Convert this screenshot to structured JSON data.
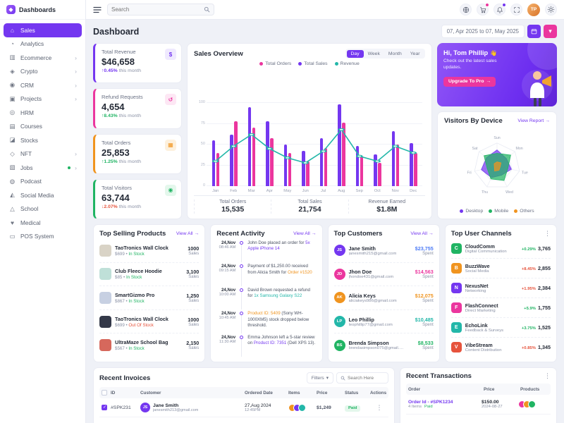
{
  "brand": {
    "name": "Dashboards"
  },
  "topbar": {
    "search_placeholder": "Search",
    "user_initials": "TP"
  },
  "sidebar": {
    "items": [
      {
        "label": "Sales",
        "glyph": "⌂",
        "state": "active"
      },
      {
        "label": "Analytics",
        "glyph": "◔"
      },
      {
        "label": "Ecommerce",
        "glyph": "▥",
        "chevron": "›"
      },
      {
        "label": "Crypto",
        "glyph": "◈",
        "chevron": "›"
      },
      {
        "label": "CRM",
        "glyph": "◉",
        "chevron": "›"
      },
      {
        "label": "Projects",
        "glyph": "▣",
        "chevron": "›"
      },
      {
        "label": "HRM",
        "glyph": "◎"
      },
      {
        "label": "Courses",
        "glyph": "▤"
      },
      {
        "label": "Stocks",
        "glyph": "◪"
      },
      {
        "label": "NFT",
        "glyph": "◇",
        "chevron": "›"
      },
      {
        "label": "Jobs",
        "glyph": "▧",
        "dot": true,
        "chevron": "›"
      },
      {
        "label": "Podcast",
        "glyph": "◍"
      },
      {
        "label": "Social Media",
        "glyph": "◭"
      },
      {
        "label": "School",
        "glyph": "△"
      },
      {
        "label": "Medical",
        "glyph": "♥"
      },
      {
        "label": "POS System",
        "glyph": "▭"
      }
    ]
  },
  "page": {
    "title": "Dashboard",
    "date_range": "07, Apr 2025 to 07, May 2025",
    "filter_glyph": "▾"
  },
  "stats": [
    {
      "label": "Total Revenue",
      "value": "$46,658",
      "arrow": "↑",
      "delta": "0.45%",
      "suffix": "this month",
      "accent": "#7437f0",
      "icon": "$",
      "icon_tone": "ic-purple",
      "tone": "t-purple"
    },
    {
      "label": "Refund Requests",
      "value": "4,654",
      "arrow": "↑",
      "delta": "8.43%",
      "suffix": "this month",
      "accent": "#eb369e",
      "icon": "↺",
      "icon_tone": "ic-pink",
      "tone": "t-green"
    },
    {
      "label": "Total Orders",
      "value": "25,853",
      "arrow": "↑",
      "delta": "1.25%",
      "suffix": "this month",
      "accent": "#f0941f",
      "icon": "▦",
      "icon_tone": "ic-orange",
      "tone": "t-green"
    },
    {
      "label": "Total Visitors",
      "value": "63,744",
      "arrow": "↓",
      "delta": "2.07%",
      "suffix": "this month",
      "accent": "#20b463",
      "icon": "◉",
      "icon_tone": "ic-green",
      "tone": "t-red"
    }
  ],
  "sales_overview": {
    "title": "Sales Overview",
    "tabs": [
      {
        "label": "Day",
        "state": "active"
      },
      {
        "label": "Week"
      },
      {
        "label": "Month"
      },
      {
        "label": "Year"
      }
    ],
    "legend": [
      {
        "label": "Total Orders",
        "color": "#eb369e"
      },
      {
        "label": "Total Sales",
        "color": "#7437f0"
      },
      {
        "label": "Revenue",
        "color": "#23b7a9"
      }
    ],
    "footer": [
      {
        "label": "Total Orders",
        "value": "15,535"
      },
      {
        "label": "Total Sales",
        "value": "21,754"
      },
      {
        "label": "Revenue Earned",
        "value": "$1.8M"
      }
    ]
  },
  "chart_data": [
    {
      "id": "sales-overview",
      "type": "bar",
      "title": "Sales Overview",
      "categories": [
        "Jan",
        "Feb",
        "Mar",
        "Apr",
        "May",
        "Jun",
        "Jul",
        "Aug",
        "Sep",
        "Oct",
        "Nov",
        "Dec"
      ],
      "series": [
        {
          "name": "Total Sales",
          "type": "bar",
          "color": "#7437f0",
          "values": [
            55,
            62,
            95,
            78,
            50,
            42,
            58,
            98,
            48,
            38,
            66,
            52
          ]
        },
        {
          "name": "Total Orders",
          "type": "bar",
          "color": "#eb369e",
          "values": [
            40,
            78,
            70,
            58,
            40,
            30,
            46,
            76,
            36,
            28,
            50,
            40
          ]
        },
        {
          "name": "Revenue",
          "type": "line",
          "color": "#23b7a9",
          "values": [
            30,
            48,
            62,
            45,
            34,
            28,
            42,
            68,
            36,
            30,
            48,
            40
          ]
        }
      ],
      "ylim": [
        0,
        100
      ],
      "yticks": [
        0,
        25,
        50,
        75,
        100
      ],
      "legend_position": "top"
    },
    {
      "id": "visitors-by-device",
      "type": "radar",
      "title": "Visitors By Device",
      "categories": [
        "Sun",
        "Mon",
        "Tue",
        "Wed",
        "Thu",
        "Fri",
        "Sat"
      ],
      "max": 100,
      "series": [
        {
          "name": "Desktop",
          "color": "#7437f0",
          "values": [
            70,
            52,
            64,
            44,
            56,
            70,
            58
          ]
        },
        {
          "name": "Mobile",
          "color": "#20b463",
          "values": [
            55,
            76,
            48,
            70,
            62,
            44,
            72
          ]
        },
        {
          "name": "Others",
          "color": "#f0941f",
          "values": [
            18,
            22,
            14,
            20,
            24,
            12,
            16
          ]
        }
      ]
    }
  ],
  "promo": {
    "title": "Hi, Tom Phillip",
    "emoji": "👋",
    "subtitle": "Check out the latest sales updates.",
    "cta": "Upgrade To Pro",
    "cta_arrow": "→"
  },
  "visitors": {
    "title": "Visitors By Device",
    "link": "View Report",
    "link_arrow": "→",
    "legend": [
      {
        "label": "Desktop",
        "color": "#7437f0"
      },
      {
        "label": "Mobile",
        "color": "#20b463"
      },
      {
        "label": "Others",
        "color": "#f0941f"
      }
    ]
  },
  "top_products": {
    "title": "Top Selling Products",
    "view_all": "View All",
    "arrow": "→",
    "sales_label": "Sales",
    "items": [
      {
        "name": "TaoTronics Wall Clock",
        "price": "$699",
        "status": "In Stock",
        "status_tone": "t-green",
        "sales": "1000",
        "thumb": "#d9d3c6"
      },
      {
        "name": "Club Fleece Hoodie",
        "price": "$85",
        "status": "In Stock",
        "status_tone": "t-green",
        "sales": "3,100",
        "thumb": "#bfe0d8"
      },
      {
        "name": "SmartGizmo Pro",
        "price": "$867",
        "status": "In Stock",
        "status_tone": "t-green",
        "sales": "1,250",
        "thumb": "#c7d0e2"
      },
      {
        "name": "TaoTronics Wall Clock",
        "price": "$699",
        "status": "Out Of Stock",
        "status_tone": "t-red",
        "sales": "1000",
        "thumb": "#343949"
      },
      {
        "name": "UltraMaze School Bag",
        "price": "$567",
        "status": "In Stock",
        "status_tone": "t-green",
        "sales": "2,150",
        "thumb": "#d6685c"
      }
    ]
  },
  "activity": {
    "title": "Recent Activity",
    "view_all": "View All",
    "arrow": "→",
    "items": [
      {
        "date": "24,Nov",
        "time": "08:46 AM",
        "pre": "John Doe placed an order for ",
        "link": "5x Apple iPhone 14",
        "post": "",
        "link_tone": "t-purple",
        "dot_tone": "d-purple"
      },
      {
        "date": "24,Nov",
        "time": "09:15 AM",
        "pre": "Payment of $1,250.00 received from Alicia Smith for ",
        "link": "Order #1520",
        "post": "",
        "link_tone": "t-orange",
        "dot_tone": "d-pink"
      },
      {
        "date": "24,Nov",
        "time": "10:00 AM",
        "pre": "David Brown requested a refund for ",
        "link": "1x Samsung Galaxy S22",
        "post": "",
        "link_tone": "t-teal",
        "dot_tone": "d-teal"
      },
      {
        "date": "24,Nov",
        "time": "10:45 AM",
        "pre": "",
        "link": "Product ID: 5409",
        "post": " (Sony WH-1000XM5) stock dropped below threshold.",
        "link_tone": "t-orange",
        "dot_tone": "d-orange"
      },
      {
        "date": "24,Nov",
        "time": "11:30 AM",
        "pre": "Emma Johnson left a 5-star review on ",
        "link": "Product ID: 7351",
        "post": " (Dell XPS 13).",
        "link_tone": "t-purple",
        "dot_tone": "d-green"
      }
    ]
  },
  "top_customers": {
    "title": "Top Customers",
    "view_all": "View All",
    "arrow": "→",
    "spent_label": "Spent",
    "items": [
      {
        "name": "Jane Smith",
        "email": "janesmith215@gmail.com",
        "amount": "$23,755",
        "amount_tone": "t-blue",
        "initials": "JS",
        "color": "#7437f0"
      },
      {
        "name": "Jhon Doe",
        "email": "jhondoe431@gmail.com",
        "amount": "$14,563",
        "amount_tone": "t-pink",
        "initials": "JD",
        "color": "#eb369e"
      },
      {
        "name": "Alicia Keys",
        "email": "aliciakeys986@gmail.com",
        "amount": "$12,075",
        "amount_tone": "t-orange",
        "initials": "AK",
        "color": "#f0941f"
      },
      {
        "name": "Leo Phillip",
        "email": "leophillip77@gmail.com",
        "amount": "$10,485",
        "amount_tone": "t-teal",
        "initials": "LP",
        "color": "#23b7a9"
      },
      {
        "name": "Brenda Simpson",
        "email": "brendasimpson075@gmail.com",
        "amount": "$8,533",
        "amount_tone": "t-green",
        "initials": "BS",
        "color": "#20b463"
      }
    ]
  },
  "channels": {
    "title": "Top User Channels",
    "menu_glyph": "⋮",
    "items": [
      {
        "name": "CloudComm",
        "desc": "Digital Communication",
        "delta": "+0.29%",
        "delta_tone": "t-green",
        "value": "3,765",
        "color": "#20b463",
        "letter": "C"
      },
      {
        "name": "BuzzWave",
        "desc": "Social Media",
        "delta": "+8.45%",
        "delta_tone": "t-red",
        "value": "2,855",
        "color": "#f0941f",
        "letter": "B"
      },
      {
        "name": "NexusNet",
        "desc": "Networking",
        "delta": "+1.95%",
        "delta_tone": "t-red",
        "value": "2,384",
        "color": "#7437f0",
        "letter": "N"
      },
      {
        "name": "FlashConnect",
        "desc": "Direct Marketing",
        "delta": "+5.9%",
        "delta_tone": "t-green",
        "value": "1,755",
        "color": "#eb369e",
        "letter": "F"
      },
      {
        "name": "EchoLink",
        "desc": "Feedback & Surveys",
        "delta": "+3.75%",
        "delta_tone": "t-green",
        "value": "1,525",
        "color": "#23b7a9",
        "letter": "E"
      },
      {
        "name": "VibeStream",
        "desc": "Content Distribution",
        "delta": "+0.85%",
        "delta_tone": "t-red",
        "value": "1,345",
        "color": "#e6533c",
        "letter": "V"
      }
    ]
  },
  "invoices": {
    "title": "Recent Invoices",
    "filters_label": "Filters",
    "filters_glyph": "▾",
    "search_placeholder": "Search Here",
    "menu_glyph": "⋮",
    "columns": [
      "ID",
      "Customer",
      "Ordered Date",
      "Items",
      "Price",
      "Status",
      "Actions"
    ],
    "rows": [
      {
        "id": "#SPK231",
        "name": "Jane Smith",
        "email": "janesmith213@gmail.com",
        "date": "27,Aug 2024",
        "time": "12:45PM",
        "price": "$1,249",
        "status": "Paid",
        "initials": "JS",
        "color": "#7437f0",
        "item_colors": [
          "#f0941f",
          "#7437f0",
          "#23b7a9"
        ]
      }
    ]
  },
  "transactions": {
    "title": "Recent Transactions",
    "menu_glyph": "⋮",
    "columns": [
      "Order",
      "Price",
      "Products"
    ],
    "rows": [
      {
        "order": "Order Id - #SPK1234",
        "items": "4 Items",
        "status": "Paid",
        "price": "$150.00",
        "date": "2024-08-27",
        "product_colors": [
          "#eb369e",
          "#f0941f",
          "#20b463"
        ]
      }
    ]
  }
}
